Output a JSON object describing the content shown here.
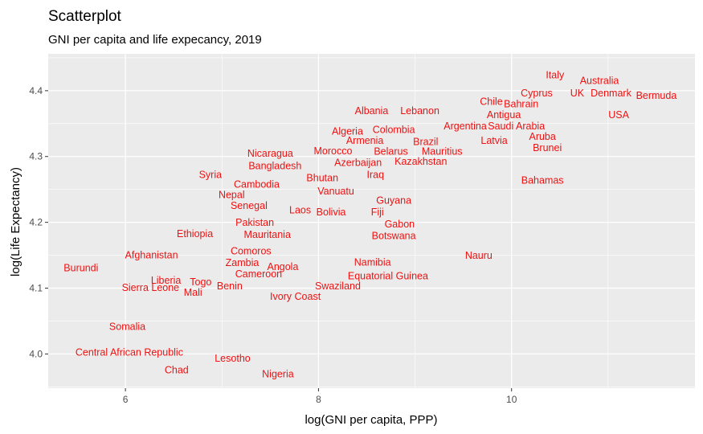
{
  "chart_data": {
    "type": "scatter",
    "title": "Scatterplot",
    "subtitle": "GNI per capita and life expecancy, 2019",
    "xlabel": "log(GNI per capita, PPP)",
    "ylabel": "log(Life Expectancy)",
    "xlim": [
      5.2,
      11.9
    ],
    "ylim": [
      3.948,
      4.456
    ],
    "x_ticks": [
      6,
      8,
      10
    ],
    "x_tick_labels": [
      "6",
      "8",
      "10"
    ],
    "y_ticks": [
      4.0,
      4.1,
      4.2,
      4.3,
      4.4
    ],
    "y_tick_labels": [
      "4.0",
      "4.1",
      "4.2",
      "4.3",
      "4.4"
    ],
    "grid": true,
    "label_color": "#ee1111",
    "panel_color": "#ebebeb",
    "points": [
      {
        "label": "Italy",
        "x": 10.45,
        "y": 4.424
      },
      {
        "label": "Australia",
        "x": 10.91,
        "y": 4.416
      },
      {
        "label": "Cyprus",
        "x": 10.26,
        "y": 4.397
      },
      {
        "label": "UK",
        "x": 10.68,
        "y": 4.397
      },
      {
        "label": "Denmark",
        "x": 11.03,
        "y": 4.397
      },
      {
        "label": "Bermuda",
        "x": 11.5,
        "y": 4.393
      },
      {
        "label": "Chile",
        "x": 9.79,
        "y": 4.384
      },
      {
        "label": "Bahrain",
        "x": 10.1,
        "y": 4.38
      },
      {
        "label": "Albania",
        "x": 8.55,
        "y": 4.37
      },
      {
        "label": "Lebanon",
        "x": 9.05,
        "y": 4.37
      },
      {
        "label": "Antigua",
        "x": 9.92,
        "y": 4.364
      },
      {
        "label": "USA",
        "x": 11.11,
        "y": 4.364
      },
      {
        "label": "Argentina",
        "x": 9.52,
        "y": 4.347
      },
      {
        "label": "Saudi Arabia",
        "x": 10.05,
        "y": 4.347
      },
      {
        "label": "Algeria",
        "x": 8.3,
        "y": 4.339
      },
      {
        "label": "Colombia",
        "x": 8.78,
        "y": 4.341
      },
      {
        "label": "Aruba",
        "x": 10.32,
        "y": 4.331
      },
      {
        "label": "Armenia",
        "x": 8.48,
        "y": 4.325
      },
      {
        "label": "Brazil",
        "x": 9.11,
        "y": 4.323
      },
      {
        "label": "Latvia",
        "x": 9.82,
        "y": 4.325
      },
      {
        "label": "Brunei",
        "x": 10.37,
        "y": 4.314
      },
      {
        "label": "Nicaragua",
        "x": 7.5,
        "y": 4.305
      },
      {
        "label": "Morocco",
        "x": 8.15,
        "y": 4.309
      },
      {
        "label": "Belarus",
        "x": 8.75,
        "y": 4.308
      },
      {
        "label": "Mauritius",
        "x": 9.28,
        "y": 4.308
      },
      {
        "label": "Azerbaijan",
        "x": 8.41,
        "y": 4.291
      },
      {
        "label": "Kazakhstan",
        "x": 9.06,
        "y": 4.293
      },
      {
        "label": "Bangladesh",
        "x": 7.55,
        "y": 4.286
      },
      {
        "label": "Syria",
        "x": 6.88,
        "y": 4.273
      },
      {
        "label": "Iraq",
        "x": 8.59,
        "y": 4.273
      },
      {
        "label": "Bahamas",
        "x": 10.32,
        "y": 4.264
      },
      {
        "label": "Bhutan",
        "x": 8.04,
        "y": 4.268
      },
      {
        "label": "Cambodia",
        "x": 7.36,
        "y": 4.258
      },
      {
        "label": "Vanuatu",
        "x": 8.18,
        "y": 4.248
      },
      {
        "label": "Nepal",
        "x": 7.1,
        "y": 4.242
      },
      {
        "label": "Guyana",
        "x": 8.78,
        "y": 4.234
      },
      {
        "label": "Senegal",
        "x": 7.28,
        "y": 4.226
      },
      {
        "label": "Laos",
        "x": 7.81,
        "y": 4.219
      },
      {
        "label": "Bolivia",
        "x": 8.13,
        "y": 4.216
      },
      {
        "label": "Fiji",
        "x": 8.61,
        "y": 4.216
      },
      {
        "label": "Pakistan",
        "x": 7.34,
        "y": 4.2
      },
      {
        "label": "Gabon",
        "x": 8.84,
        "y": 4.198
      },
      {
        "label": "Ethiopia",
        "x": 6.72,
        "y": 4.183
      },
      {
        "label": "Mauritania",
        "x": 7.47,
        "y": 4.182
      },
      {
        "label": "Botswana",
        "x": 8.78,
        "y": 4.18
      },
      {
        "label": "Comoros",
        "x": 7.3,
        "y": 4.157
      },
      {
        "label": "Afghanistan",
        "x": 6.27,
        "y": 4.151
      },
      {
        "label": "Nauru",
        "x": 9.66,
        "y": 4.15
      },
      {
        "label": "Namibia",
        "x": 8.56,
        "y": 4.14
      },
      {
        "label": "Zambia",
        "x": 7.21,
        "y": 4.139
      },
      {
        "label": "Burundi",
        "x": 5.54,
        "y": 4.131
      },
      {
        "label": "Angola",
        "x": 7.63,
        "y": 4.133
      },
      {
        "label": "Cameroon",
        "x": 7.38,
        "y": 4.122
      },
      {
        "label": "Equatorial Guinea",
        "x": 8.72,
        "y": 4.119
      },
      {
        "label": "Liberia",
        "x": 6.42,
        "y": 4.112
      },
      {
        "label": "Togo",
        "x": 6.78,
        "y": 4.11
      },
      {
        "label": "Benin",
        "x": 7.08,
        "y": 4.104
      },
      {
        "label": "Swaziland",
        "x": 8.2,
        "y": 4.104
      },
      {
        "label": "Sierra Leone",
        "x": 6.26,
        "y": 4.101
      },
      {
        "label": "Mali",
        "x": 6.7,
        "y": 4.094
      },
      {
        "label": "Ivory Coast",
        "x": 7.76,
        "y": 4.088
      },
      {
        "label": "Somalia",
        "x": 6.02,
        "y": 4.042
      },
      {
        "label": "Central African Republic",
        "x": 6.04,
        "y": 4.003
      },
      {
        "label": "Lesotho",
        "x": 7.11,
        "y": 3.994
      },
      {
        "label": "Chad",
        "x": 6.53,
        "y": 3.976
      },
      {
        "label": "Nigeria",
        "x": 7.58,
        "y": 3.97
      }
    ]
  }
}
